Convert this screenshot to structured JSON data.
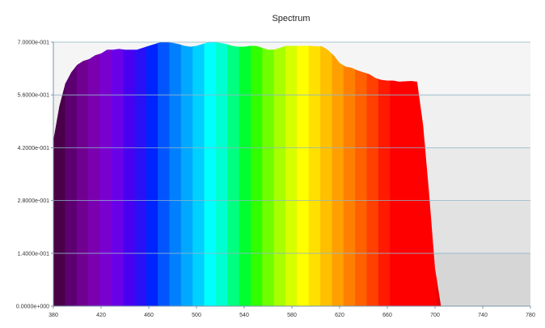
{
  "window": {
    "title": "Spectrum"
  },
  "chart_data": {
    "type": "area",
    "title": "Spectrum",
    "xlabel": "",
    "ylabel": "",
    "xlim": [
      380,
      780
    ],
    "ylim": [
      0,
      0.7
    ],
    "xticks": [
      "380",
      "420",
      "460",
      "500",
      "540",
      "580",
      "620",
      "660",
      "700",
      "740",
      "780"
    ],
    "yticks": [
      "0.0000e+000",
      "1.4000e-001",
      "2.8000e-001",
      "4.2000e-001",
      "5.6000e-001",
      "7.0000e-001"
    ],
    "grid": true,
    "legend": "none",
    "x": [
      380,
      385,
      390,
      395,
      400,
      405,
      410,
      415,
      420,
      425,
      430,
      435,
      440,
      445,
      450,
      455,
      460,
      465,
      470,
      475,
      480,
      485,
      490,
      495,
      500,
      505,
      510,
      515,
      520,
      525,
      530,
      535,
      540,
      545,
      550,
      555,
      560,
      565,
      570,
      575,
      580,
      585,
      590,
      595,
      600,
      605,
      610,
      615,
      620,
      625,
      630,
      635,
      640,
      645,
      650,
      655,
      660,
      665,
      670,
      675,
      680,
      685,
      690,
      695,
      700,
      705,
      710,
      715,
      720,
      725,
      730,
      735,
      740
    ],
    "values": [
      0.44,
      0.53,
      0.59,
      0.62,
      0.64,
      0.65,
      0.655,
      0.665,
      0.67,
      0.68,
      0.68,
      0.682,
      0.68,
      0.68,
      0.68,
      0.685,
      0.69,
      0.695,
      0.7,
      0.7,
      0.698,
      0.695,
      0.69,
      0.688,
      0.69,
      0.695,
      0.7,
      0.7,
      0.698,
      0.695,
      0.69,
      0.688,
      0.688,
      0.69,
      0.69,
      0.685,
      0.68,
      0.68,
      0.685,
      0.69,
      0.69,
      0.69,
      0.69,
      0.69,
      0.689,
      0.689,
      0.68,
      0.665,
      0.645,
      0.635,
      0.632,
      0.625,
      0.62,
      0.615,
      0.605,
      0.6,
      0.598,
      0.598,
      0.595,
      0.596,
      0.597,
      0.595,
      0.48,
      0.3,
      0.1,
      0.0,
      0.0,
      0.0,
      0.0,
      0.0,
      0.0,
      0.0,
      0.0
    ],
    "band_colors": [
      "#4a0048",
      "#5c0070",
      "#6f0090",
      "#7a00b0",
      "#7a00d0",
      "#6a00e8",
      "#4a00f0",
      "#2a10f5",
      "#0024ff",
      "#0055ff",
      "#0080ff",
      "#00a8ff",
      "#00d0ff",
      "#00ffff",
      "#00ffd0",
      "#00ff80",
      "#00ff30",
      "#30ff00",
      "#70ff00",
      "#a8ff00",
      "#d8ff00",
      "#ffff00",
      "#ffe000",
      "#ffc000",
      "#ffa000",
      "#ff8000",
      "#ff6000",
      "#ff4000",
      "#ff1a00",
      "#ff0000",
      "#ff0000",
      "#ff0000",
      "#ff0000",
      "#e80000",
      "#d00000",
      "#b80000",
      "#a00000"
    ]
  }
}
